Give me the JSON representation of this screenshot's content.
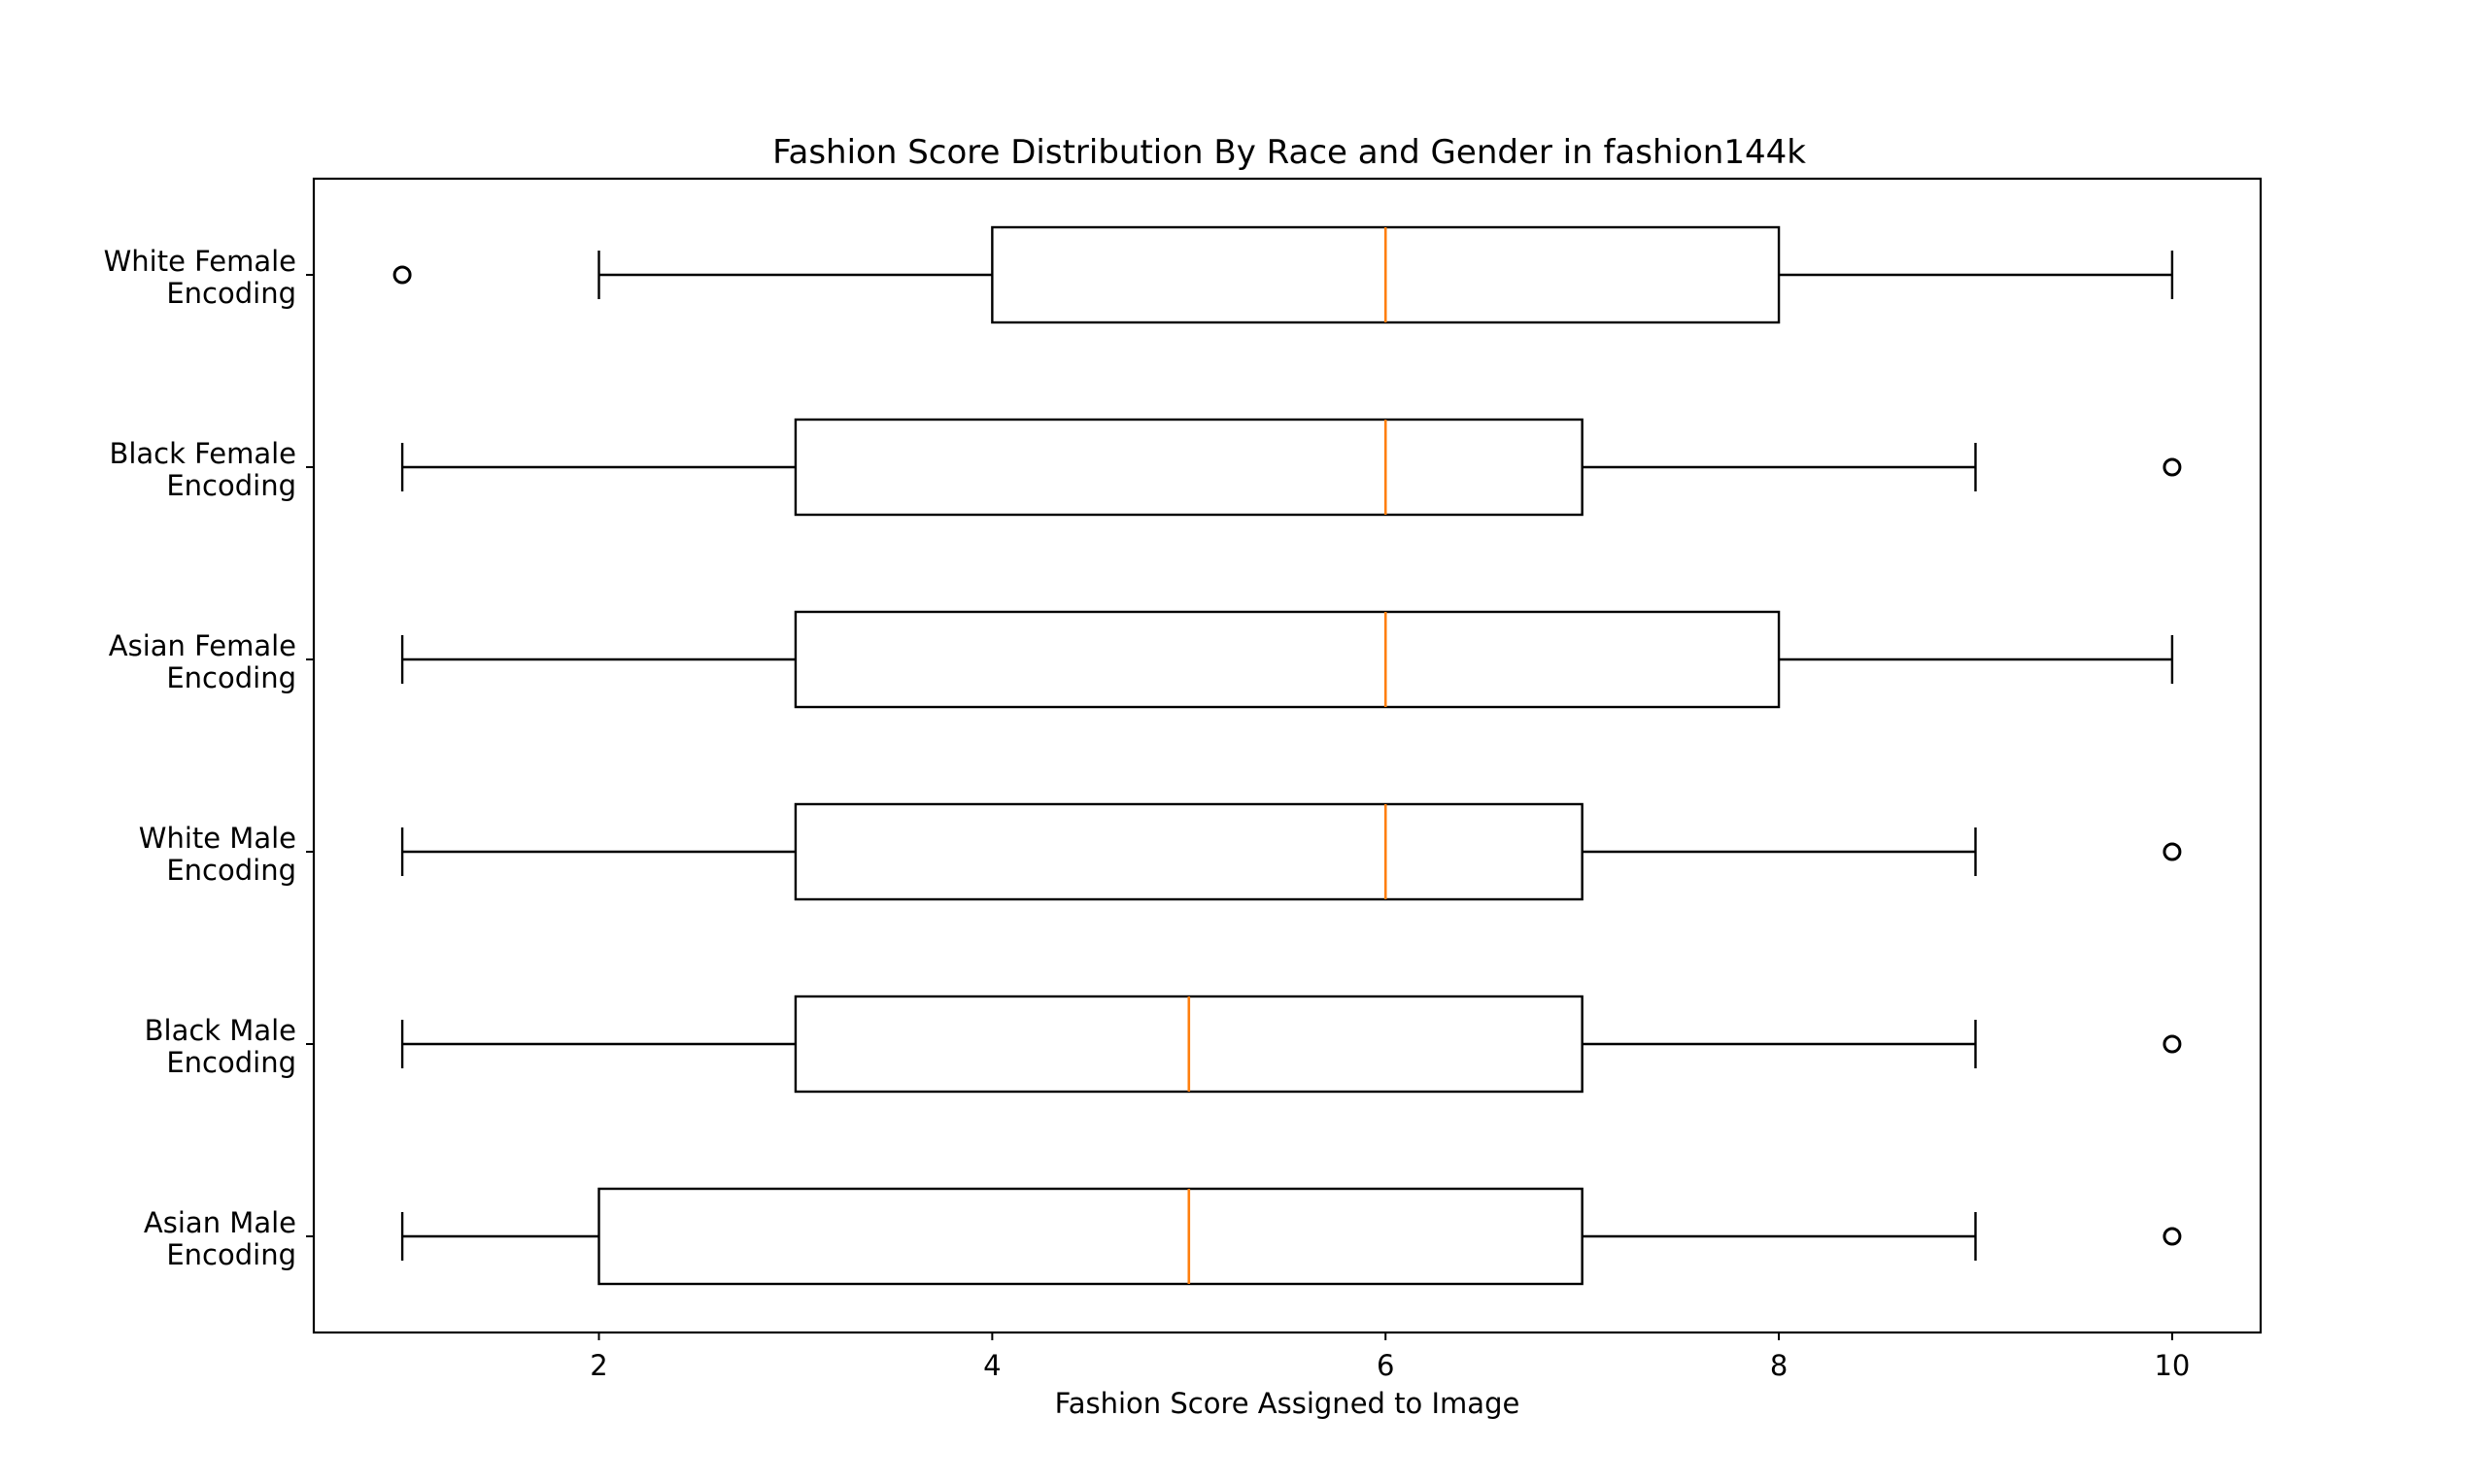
{
  "chart_data": {
    "type": "boxplot",
    "orientation": "horizontal",
    "title": "Fashion Score Distribution By Race and Gender in fashion144k",
    "xlabel": "Fashion Score Assigned to Image",
    "ylabel": "",
    "xlim": [
      0.55,
      10.45
    ],
    "xticks": [
      2,
      4,
      6,
      8,
      10
    ],
    "grid": false,
    "colors": {
      "box": "#000000",
      "median": "#ff7f0e",
      "flier": "#000000"
    },
    "categories": [
      "White Female\nEncoding",
      "Black Female\nEncoding",
      "Asian Female\nEncoding",
      "White Male\nEncoding",
      "Black Male\nEncoding",
      "Asian Male\nEncoding"
    ],
    "boxes": [
      {
        "category": "White Female Encoding",
        "whisker_low": 2,
        "q1": 4,
        "median": 6,
        "q3": 8,
        "whisker_high": 10,
        "fliers": [
          1
        ]
      },
      {
        "category": "Black Female Encoding",
        "whisker_low": 1,
        "q1": 3,
        "median": 6,
        "q3": 7,
        "whisker_high": 9,
        "fliers": [
          10
        ]
      },
      {
        "category": "Asian Female Encoding",
        "whisker_low": 1,
        "q1": 3,
        "median": 6,
        "q3": 8,
        "whisker_high": 10,
        "fliers": []
      },
      {
        "category": "White Male Encoding",
        "whisker_low": 1,
        "q1": 3,
        "median": 6,
        "q3": 7,
        "whisker_high": 9,
        "fliers": [
          10
        ]
      },
      {
        "category": "Black Male Encoding",
        "whisker_low": 1,
        "q1": 3,
        "median": 5,
        "q3": 7,
        "whisker_high": 9,
        "fliers": [
          10
        ]
      },
      {
        "category": "Asian Male Encoding",
        "whisker_low": 1,
        "q1": 2,
        "median": 5,
        "q3": 7,
        "whisker_high": 9,
        "fliers": [
          10
        ]
      }
    ]
  }
}
